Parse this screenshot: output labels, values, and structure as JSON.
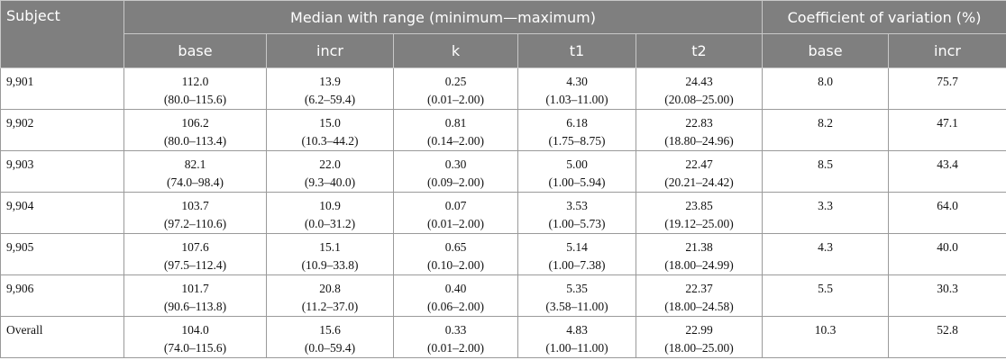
{
  "header": {
    "top": [
      "Subject",
      "Median with range (minimum—maximum)",
      "Coefficient of variation (%)"
    ],
    "sub": [
      "base",
      "incr",
      "k",
      "t1",
      "t2",
      "base",
      "incr"
    ]
  },
  "rows": [
    {
      "subject": "9,901",
      "medians": [
        [
          "112.0",
          "(80.0–115.6)"
        ],
        [
          "13.9",
          "(6.2–59.4)"
        ],
        [
          "0.25",
          "(0.01–2.00)"
        ],
        [
          "4.30",
          "(1.03–11.00)"
        ],
        [
          "24.43",
          "(20.08–25.00)"
        ]
      ],
      "cv": [
        "8.0",
        "75.7"
      ]
    },
    {
      "subject": "9,902",
      "medians": [
        [
          "106.2",
          "(80.0–113.4)"
        ],
        [
          "15.0",
          "(10.3–44.2)"
        ],
        [
          "0.81",
          "(0.14–2.00)"
        ],
        [
          "6.18",
          "(1.75–8.75)"
        ],
        [
          "22.83",
          "(18.80–24.96)"
        ]
      ],
      "cv": [
        "8.2",
        "47.1"
      ]
    },
    {
      "subject": "9,903",
      "medians": [
        [
          "82.1",
          "(74.0–98.4)"
        ],
        [
          "22.0",
          "(9.3–40.0)"
        ],
        [
          "0.30",
          "(0.09–2.00)"
        ],
        [
          "5.00",
          "(1.00–5.94)"
        ],
        [
          "22.47",
          "(20.21–24.42)"
        ]
      ],
      "cv": [
        "8.5",
        "43.4"
      ]
    },
    {
      "subject": "9,904",
      "medians": [
        [
          "103.7",
          "(97.2–110.6)"
        ],
        [
          "10.9",
          "(0.0–31.2)"
        ],
        [
          "0.07",
          "(0.01–2.00)"
        ],
        [
          "3.53",
          "(1.00–5.73)"
        ],
        [
          "23.85",
          "(19.12–25.00)"
        ]
      ],
      "cv": [
        "3.3",
        "64.0"
      ]
    },
    {
      "subject": "9,905",
      "medians": [
        [
          "107.6",
          "(97.5–112.4)"
        ],
        [
          "15.1",
          "(10.9–33.8)"
        ],
        [
          "0.65",
          "(0.10–2.00)"
        ],
        [
          "5.14",
          "(1.00–7.38)"
        ],
        [
          "21.38",
          "(18.00–24.99)"
        ]
      ],
      "cv": [
        "4.3",
        "40.0"
      ]
    },
    {
      "subject": "9,906",
      "medians": [
        [
          "101.7",
          "(90.6–113.8)"
        ],
        [
          "20.8",
          "(11.2–37.0)"
        ],
        [
          "0.40",
          "(0.06–2.00)"
        ],
        [
          "5.35",
          "(3.58–11.00)"
        ],
        [
          "22.37",
          "(18.00–24.58)"
        ]
      ],
      "cv": [
        "5.5",
        "30.3"
      ]
    },
    {
      "subject": "Overall",
      "medians": [
        [
          "104.0",
          "(74.0–115.6)"
        ],
        [
          "15.6",
          "(0.0–59.4)"
        ],
        [
          "0.33",
          "(0.01–2.00)"
        ],
        [
          "4.83",
          "(1.00–11.00)"
        ],
        [
          "22.99",
          "(18.00–25.00)"
        ]
      ],
      "cv": [
        "10.3",
        "52.8"
      ]
    }
  ]
}
